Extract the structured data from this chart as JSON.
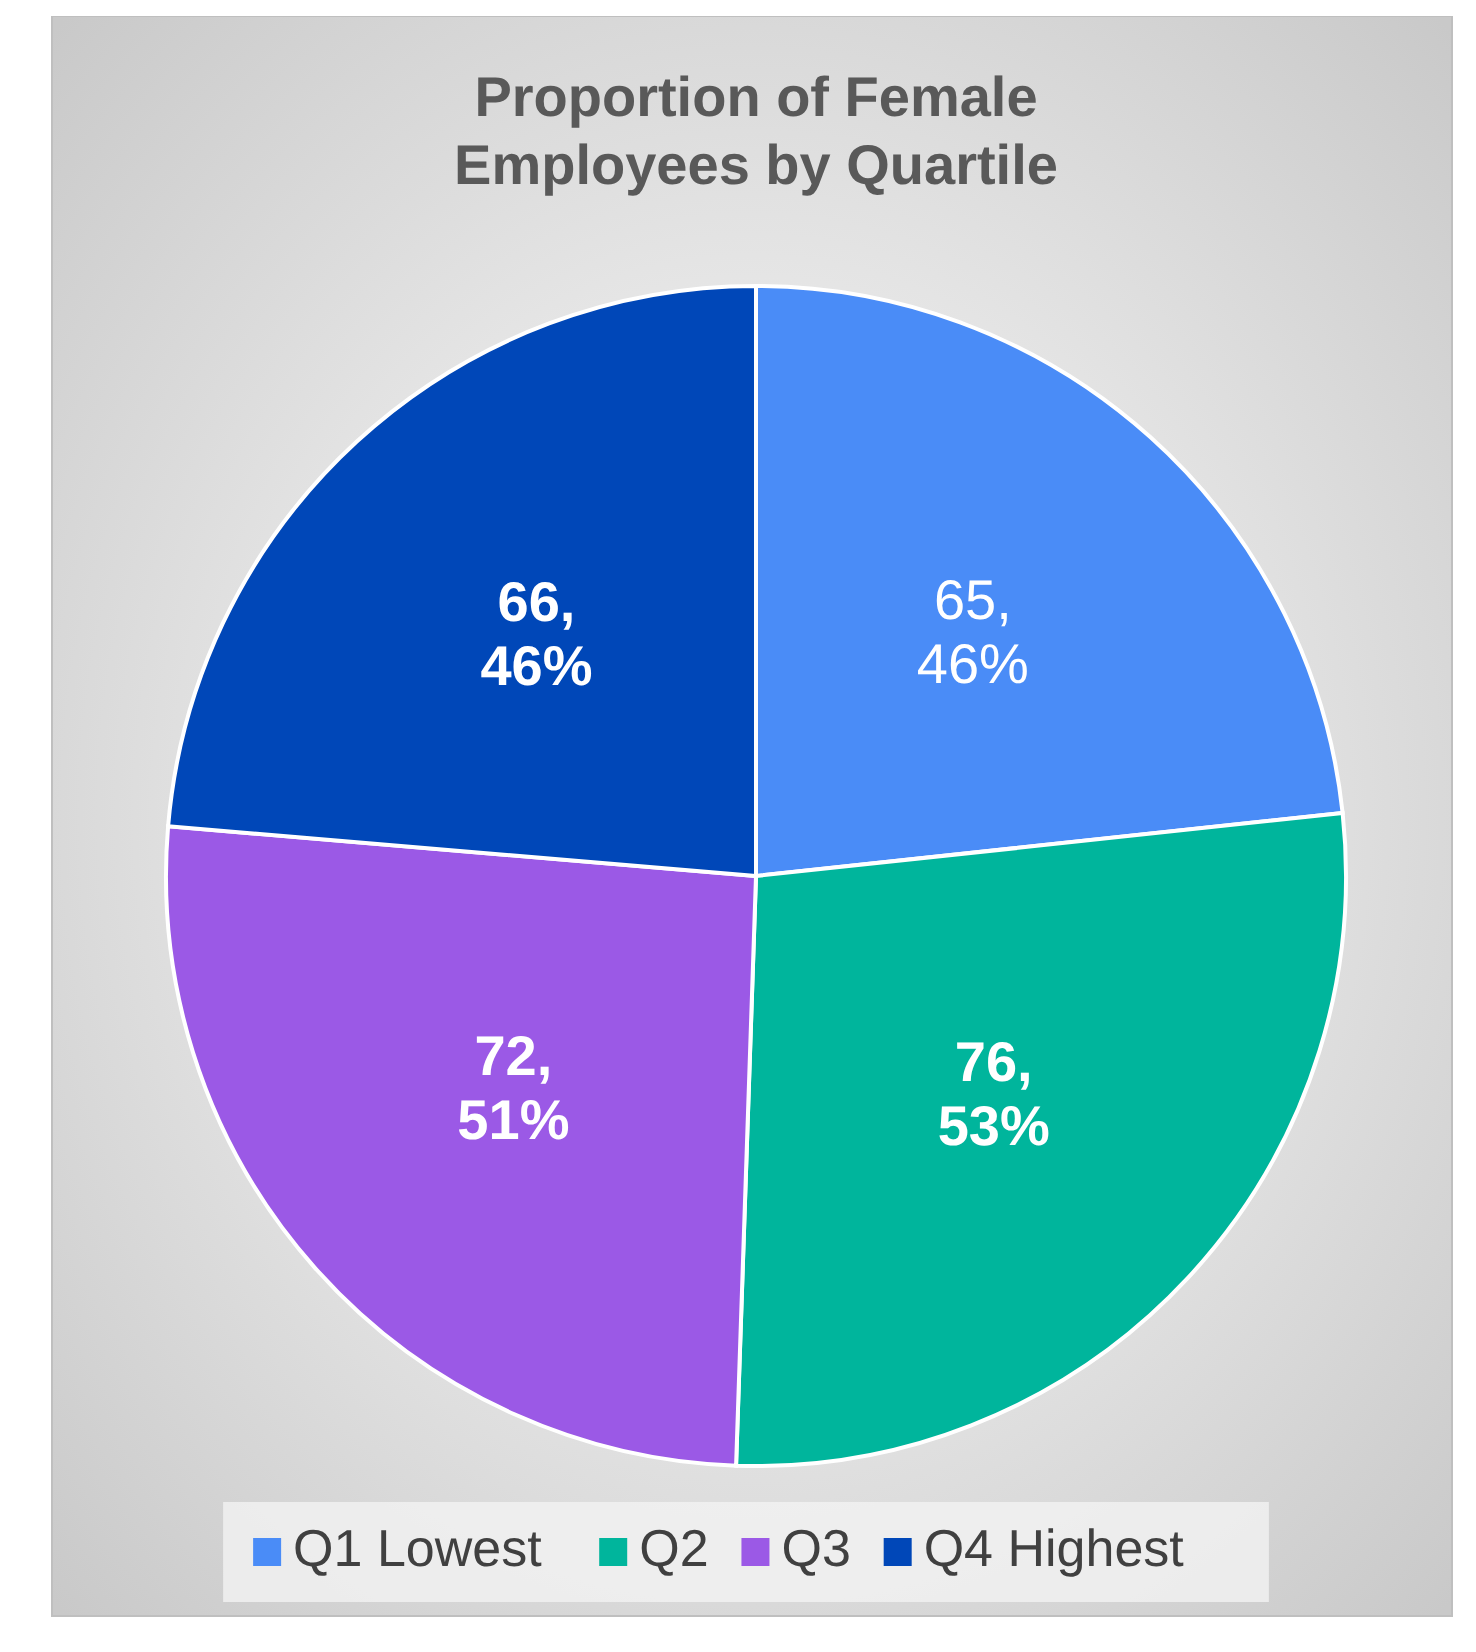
{
  "chart_data": {
    "type": "pie",
    "title": "Proportion of Female Employees by Quartile",
    "categories": [
      "Q1 Lowest",
      "Q2",
      "Q3",
      "Q4 Highest"
    ],
    "values": [
      65,
      76,
      72,
      66
    ],
    "colors": [
      "#4a8cf7",
      "#00b59c",
      "#9b59e6",
      "#0047b8"
    ],
    "value_labels": [
      "65, 46%",
      "76, 53%",
      "72, 51%",
      "66, 46%"
    ],
    "legend": "bottom"
  }
}
